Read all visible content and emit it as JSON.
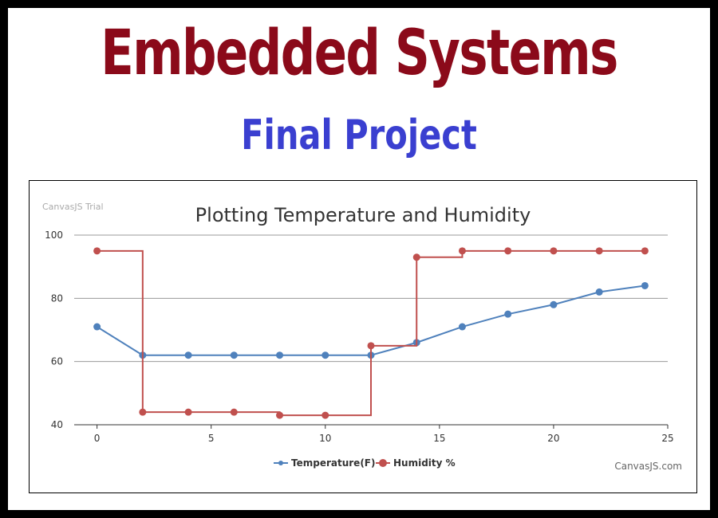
{
  "header": {
    "title": "Embedded Systems",
    "subtitle": "Final Project"
  },
  "chart_meta": {
    "watermark": "CanvasJS Trial",
    "credit": "CanvasJS.com"
  },
  "colors": {
    "title": "#8b0a1a",
    "subtitle": "#3a3fd0",
    "temperature": "#4f81bc",
    "humidity": "#c0504e"
  },
  "chart_data": {
    "type": "line",
    "title": "Plotting Temperature and Humidity",
    "xlabel": "",
    "ylabel": "",
    "xlim": [
      -1,
      25
    ],
    "ylim": [
      40,
      100
    ],
    "xticks": [
      0,
      5,
      10,
      15,
      20,
      25
    ],
    "yticks": [
      40,
      60,
      80,
      100
    ],
    "grid": true,
    "legend_position": "bottom",
    "series": [
      {
        "name": "Temperature(F)",
        "line_style": "straight",
        "x": [
          0,
          2,
          4,
          6,
          8,
          10,
          12,
          14,
          16,
          18,
          20,
          22,
          24
        ],
        "values": [
          71,
          62,
          62,
          62,
          62,
          62,
          62,
          66,
          71,
          75,
          78,
          82,
          84
        ]
      },
      {
        "name": "Humidity %",
        "line_style": "step",
        "x": [
          0,
          2,
          4,
          6,
          8,
          10,
          12,
          14,
          16,
          18,
          20,
          22,
          24
        ],
        "values": [
          95,
          44,
          44,
          44,
          43,
          43,
          65,
          93,
          95,
          95,
          95,
          95,
          95
        ]
      }
    ]
  }
}
